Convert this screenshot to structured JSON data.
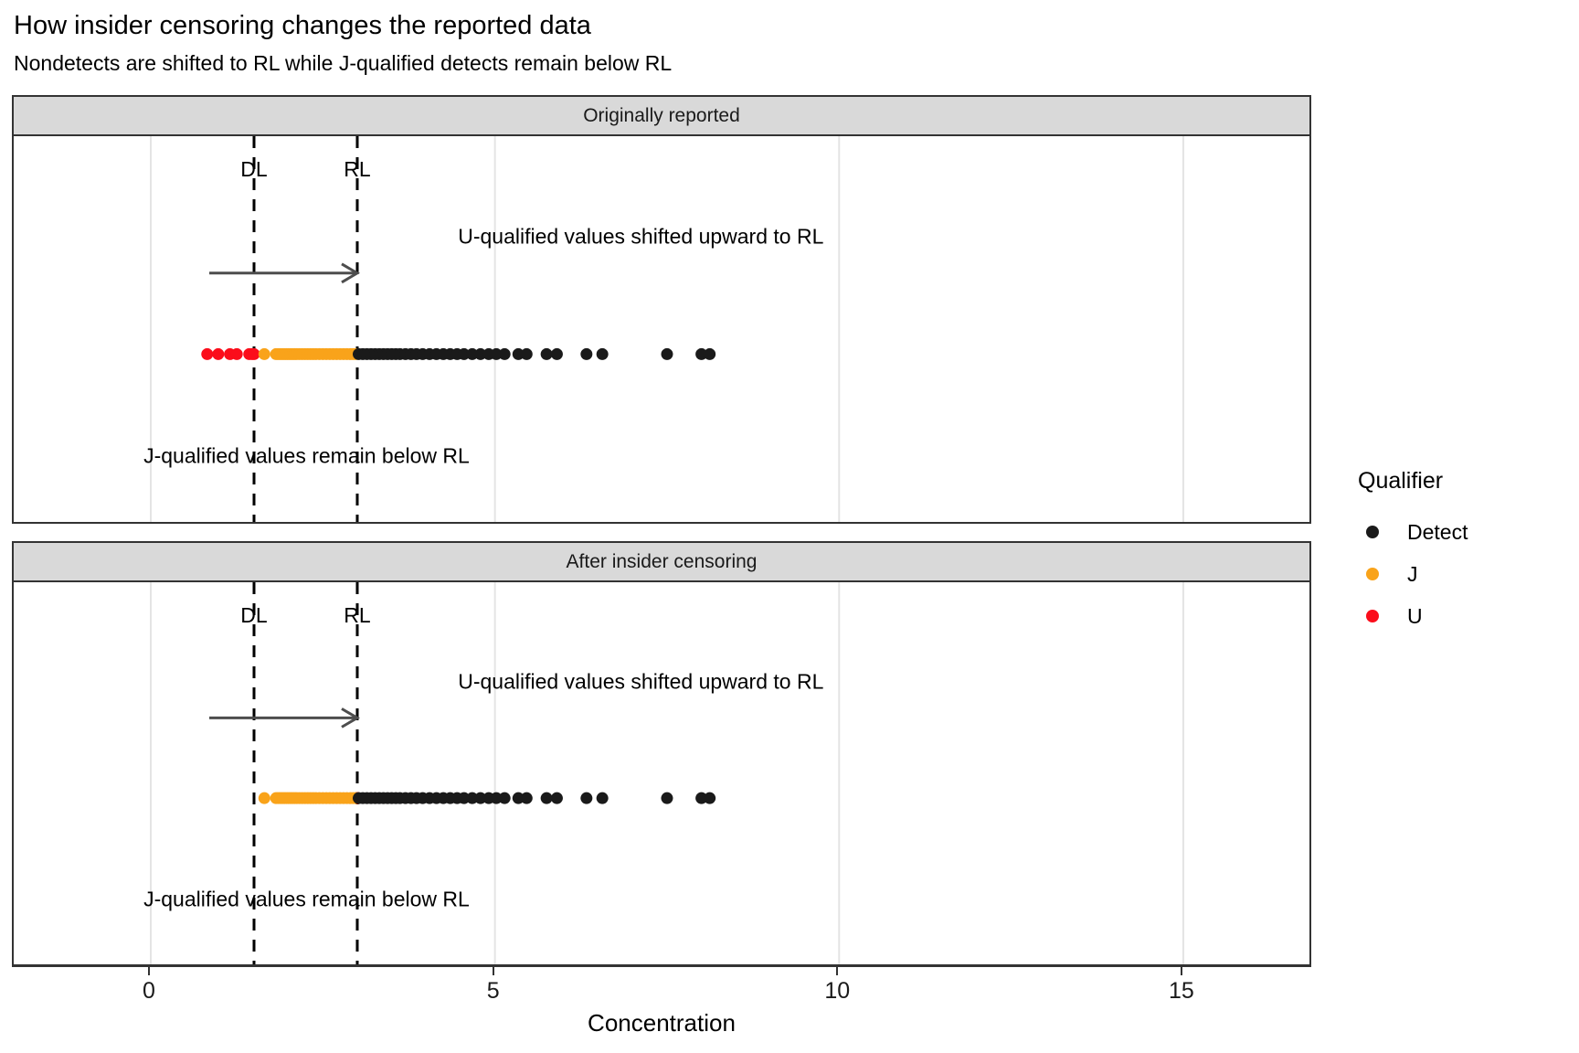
{
  "header": {
    "title": "How insider censoring changes the reported data",
    "subtitle": "Nondetects are shifted to RL while J-qualified detects remain below RL"
  },
  "panels": [
    {
      "strip": "Originally reported",
      "dl_label": "DL",
      "rl_label": "RL",
      "u_annotation": "U-qualified values shifted upward to RL",
      "j_annotation": "J-qualified values remain below RL"
    },
    {
      "strip": "After insider censoring",
      "dl_label": "DL",
      "rl_label": "RL",
      "u_annotation": "U-qualified values shifted upward to RL",
      "j_annotation": "J-qualified values remain below RL"
    }
  ],
  "axis": {
    "label": "Concentration"
  },
  "legend": {
    "title": "Qualifier",
    "items": [
      {
        "label": "Detect",
        "color": "#1a1a1a"
      },
      {
        "label": "J",
        "color": "#f9a31a"
      },
      {
        "label": "U",
        "color": "#fb0d1b"
      }
    ]
  },
  "colors": {
    "gridline": "#e4e4e4",
    "panel_border": "#333333",
    "strip_fill": "#d9d9d9",
    "dashed_line": "#000000",
    "arrow": "#4d4d4d"
  },
  "chart_data": {
    "type": "scatter",
    "subtype": "one-dimensional strip plot, faceted rows",
    "x_axis": {
      "label": "Concentration",
      "ticks": [
        0,
        5,
        10,
        15
      ],
      "tick_labels": [
        "0",
        "5",
        "10",
        "15"
      ],
      "range": [
        -2,
        16.9
      ]
    },
    "reference_lines": {
      "DL": 1.5,
      "RL": 3
    },
    "arrow": {
      "x_start": 0.85,
      "x_end": 3.0
    },
    "legend_title": "Qualifier",
    "facets": [
      {
        "name": "Originally reported",
        "series": [
          {
            "name": "U",
            "color": "#fb0d1b",
            "x": [
              0.82,
              0.98,
              1.15,
              1.25,
              1.43,
              1.47,
              1.5
            ]
          },
          {
            "name": "J",
            "color": "#f9a31a",
            "x": [
              1.65,
              1.82,
              1.85,
              1.88,
              1.91,
              1.94,
              1.97,
              2.0,
              2.03,
              2.06,
              2.09,
              2.12,
              2.16,
              2.2,
              2.24,
              2.28,
              2.32,
              2.36,
              2.4,
              2.45,
              2.5,
              2.55,
              2.6,
              2.65,
              2.7,
              2.75,
              2.8,
              2.85,
              2.9,
              2.94,
              2.98
            ]
          },
          {
            "name": "Detect",
            "color": "#1a1a1a",
            "x": [
              3.02,
              3.08,
              3.14,
              3.2,
              3.26,
              3.32,
              3.38,
              3.44,
              3.5,
              3.56,
              3.62,
              3.7,
              3.78,
              3.86,
              3.95,
              4.05,
              4.15,
              4.25,
              4.35,
              4.45,
              4.55,
              4.67,
              4.79,
              4.91,
              5.02,
              5.14,
              5.34,
              5.46,
              5.75,
              5.9,
              6.33,
              6.56,
              7.5,
              8.0,
              8.12
            ]
          }
        ]
      },
      {
        "name": "After insider censoring",
        "series": [
          {
            "name": "U",
            "color": "#fb0d1b",
            "x": [
              3,
              3,
              3,
              3,
              3,
              3,
              3
            ]
          },
          {
            "name": "J",
            "color": "#f9a31a",
            "x": [
              1.65,
              1.82,
              1.85,
              1.88,
              1.91,
              1.94,
              1.97,
              2.0,
              2.03,
              2.06,
              2.09,
              2.12,
              2.16,
              2.2,
              2.24,
              2.28,
              2.32,
              2.36,
              2.4,
              2.45,
              2.5,
              2.55,
              2.6,
              2.65,
              2.7,
              2.75,
              2.8,
              2.85,
              2.9,
              2.94,
              2.98
            ]
          },
          {
            "name": "Detect",
            "color": "#1a1a1a",
            "x": [
              3.02,
              3.08,
              3.14,
              3.2,
              3.26,
              3.32,
              3.38,
              3.44,
              3.5,
              3.56,
              3.62,
              3.7,
              3.78,
              3.86,
              3.95,
              4.05,
              4.15,
              4.25,
              4.35,
              4.45,
              4.55,
              4.67,
              4.79,
              4.91,
              5.02,
              5.14,
              5.34,
              5.46,
              5.75,
              5.9,
              6.33,
              6.56,
              7.5,
              8.0,
              8.12
            ]
          }
        ]
      }
    ]
  }
}
